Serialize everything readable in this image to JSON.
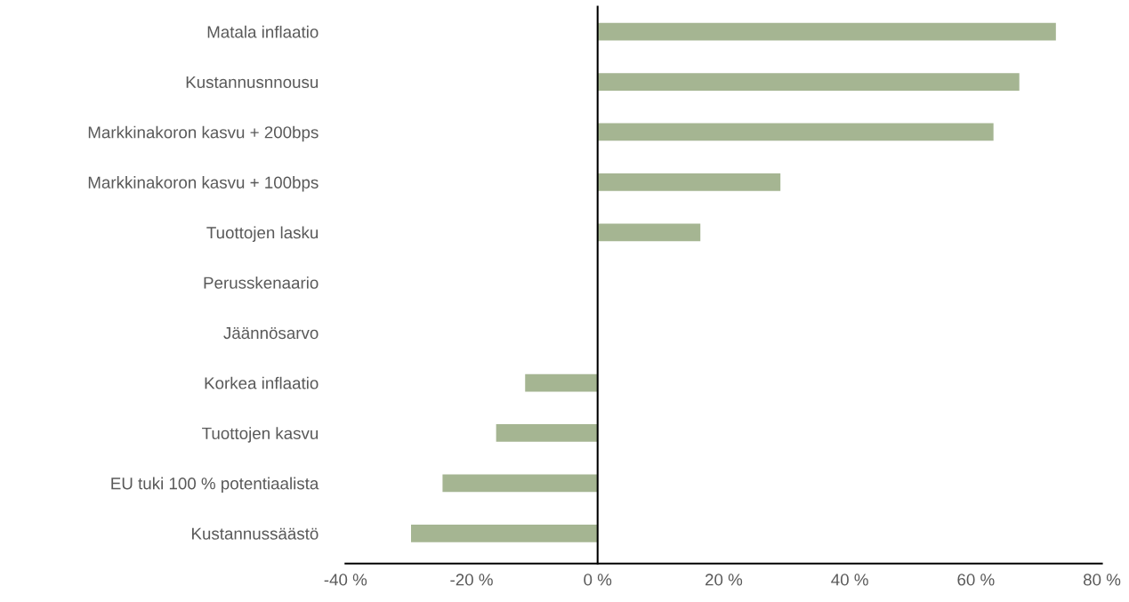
{
  "chart_data": {
    "type": "bar",
    "orientation": "horizontal",
    "categories": [
      "Matala inflaatio",
      "Kustannusnnousu",
      "Markkinakoron kasvu + 200bps",
      "Markkinakoron kasvu + 100bps",
      "Tuottojen lasku",
      "Perusskenaario",
      "Jäännösarvo",
      "Korkea inflaatio",
      "Tuottojen kasvu",
      "EU tuki 100 % potentiaalista",
      "Kustannussäästö"
    ],
    "values": [
      72.7,
      66.9,
      62.8,
      29.0,
      16.3,
      0,
      0,
      -11.5,
      -16.1,
      -24.6,
      -29.6
    ],
    "color": "#a5b592",
    "xlim": [
      -40,
      80
    ],
    "xticks": [
      {
        "value": -40,
        "label": "-40 %"
      },
      {
        "value": -20,
        "label": "-20 %"
      },
      {
        "value": 0,
        "label": "0 %"
      },
      {
        "value": 20,
        "label": "20 %"
      },
      {
        "value": 40,
        "label": "40 %"
      },
      {
        "value": 60,
        "label": "60 %"
      },
      {
        "value": 80,
        "label": "80 %"
      }
    ],
    "legend": false
  }
}
